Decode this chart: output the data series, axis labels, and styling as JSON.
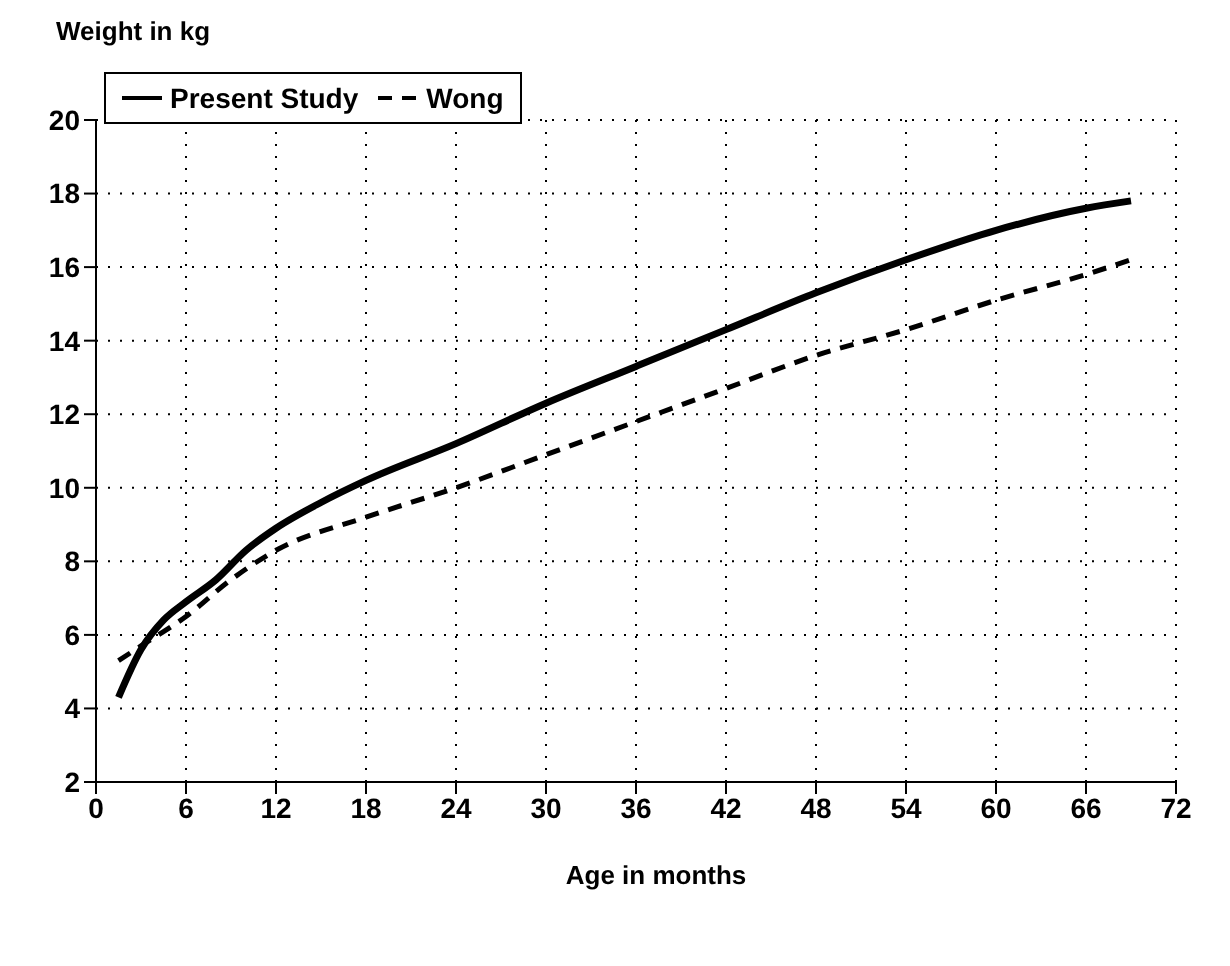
{
  "chart_data": {
    "type": "line",
    "xlabel": "Age in months",
    "ylabel": "Weight in kg",
    "xlim": [
      0,
      72
    ],
    "xticks": [
      0,
      6,
      12,
      18,
      24,
      30,
      36,
      42,
      48,
      54,
      60,
      66,
      72
    ],
    "ylim": [
      2,
      20
    ],
    "yticks": [
      2,
      4,
      6,
      8,
      10,
      12,
      14,
      16,
      18,
      20
    ],
    "grid": true,
    "legend": "top left",
    "marker": "none",
    "series": [
      {
        "name": "Present Study",
        "color": "#000000",
        "line_style": "solid",
        "x": [
          1.5,
          3,
          4.5,
          6,
          8,
          10,
          12,
          15,
          18,
          24,
          30,
          36,
          42,
          48,
          54,
          60,
          66,
          69
        ],
        "values": [
          4.3,
          5.6,
          6.4,
          6.9,
          7.5,
          8.3,
          8.9,
          9.6,
          10.2,
          11.2,
          12.3,
          13.3,
          14.3,
          15.3,
          16.2,
          17.0,
          17.6,
          17.8
        ]
      },
      {
        "name": "Wong",
        "color": "#000000",
        "line_style": "dashed",
        "x": [
          1.5,
          3,
          6,
          9,
          12,
          18,
          24,
          30,
          36,
          42,
          48,
          54,
          60,
          66,
          69
        ],
        "values": [
          5.3,
          5.7,
          6.5,
          7.5,
          8.3,
          9.2,
          10.0,
          10.9,
          11.8,
          12.7,
          13.6,
          14.3,
          15.1,
          15.8,
          16.2
        ]
      }
    ]
  }
}
